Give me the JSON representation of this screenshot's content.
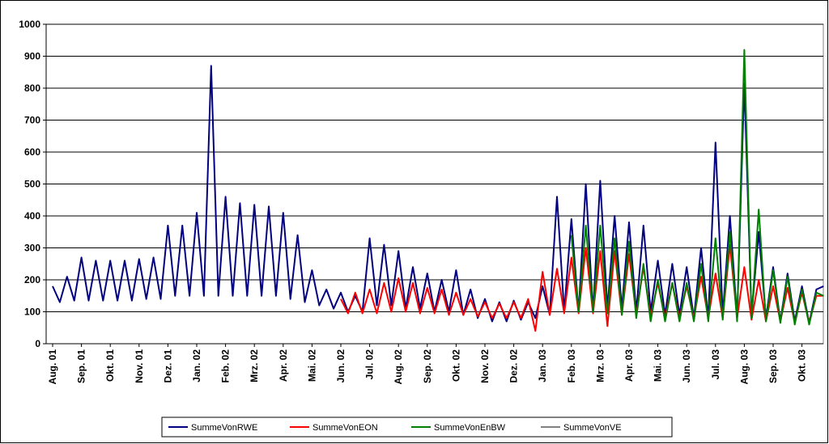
{
  "chart_data": {
    "type": "line",
    "categories": [
      "Aug. 01",
      null,
      null,
      null,
      "Sep. 01",
      null,
      null,
      null,
      "Okt. 01",
      null,
      null,
      null,
      "Nov. 01",
      null,
      null,
      null,
      "Dez. 01",
      null,
      null,
      null,
      "Jan. 02",
      null,
      null,
      null,
      "Feb. 02",
      null,
      null,
      null,
      "Mrz. 02",
      null,
      null,
      null,
      "Apr. 02",
      null,
      null,
      null,
      "Mai. 02",
      null,
      null,
      null,
      "Jun. 02",
      null,
      null,
      null,
      "Jul. 02",
      null,
      null,
      null,
      "Aug. 02",
      null,
      null,
      null,
      "Sep. 02",
      null,
      null,
      null,
      "Okt. 02",
      null,
      null,
      null,
      "Nov. 02",
      null,
      null,
      null,
      "Dez. 02",
      null,
      null,
      null,
      "Jan. 03",
      null,
      null,
      null,
      "Feb. 03",
      null,
      null,
      null,
      "Mrz. 03",
      null,
      null,
      null,
      "Apr. 03",
      null,
      null,
      null,
      "Mai. 03",
      null,
      null,
      null,
      "Jun. 03",
      null,
      null,
      null,
      "Jul. 03",
      null,
      null,
      null,
      "Aug. 03",
      null,
      null,
      null,
      "Sep. 03",
      null,
      null,
      null,
      "Okt. 03",
      null,
      null,
      null
    ],
    "series": [
      {
        "name": "SummeVonRWE",
        "color": "#000080",
        "values": [
          180,
          130,
          210,
          135,
          270,
          135,
          260,
          135,
          260,
          135,
          260,
          135,
          265,
          140,
          270,
          140,
          370,
          150,
          370,
          150,
          410,
          150,
          870,
          150,
          460,
          150,
          440,
          150,
          435,
          150,
          430,
          150,
          410,
          140,
          340,
          130,
          230,
          120,
          170,
          110,
          160,
          100,
          150,
          100,
          330,
          120,
          310,
          120,
          290,
          110,
          240,
          110,
          220,
          100,
          200,
          100,
          230,
          90,
          170,
          80,
          140,
          70,
          130,
          70,
          135,
          75,
          130,
          80,
          180,
          90,
          460,
          100,
          390,
          100,
          500,
          100,
          510,
          110,
          400,
          110,
          380,
          100,
          370,
          100,
          260,
          90,
          250,
          90,
          240,
          80,
          300,
          80,
          630,
          90,
          400,
          80,
          815,
          90,
          350,
          80,
          240,
          70,
          220,
          70,
          180,
          65,
          170,
          180
        ]
      },
      {
        "name": "SummeVonEON",
        "color": "#ff0000",
        "values": [
          null,
          null,
          null,
          null,
          null,
          null,
          null,
          null,
          null,
          null,
          null,
          null,
          null,
          null,
          null,
          null,
          null,
          null,
          null,
          null,
          null,
          null,
          null,
          null,
          null,
          null,
          null,
          null,
          null,
          null,
          null,
          null,
          null,
          null,
          null,
          null,
          null,
          null,
          null,
          null,
          140,
          95,
          160,
          95,
          170,
          95,
          190,
          100,
          205,
          100,
          190,
          95,
          175,
          95,
          170,
          90,
          160,
          90,
          140,
          85,
          130,
          80,
          125,
          80,
          130,
          80,
          140,
          40,
          225,
          90,
          235,
          95,
          270,
          95,
          300,
          95,
          290,
          55,
          290,
          90,
          280,
          90,
          240,
          85,
          190,
          80,
          190,
          80,
          180,
          80,
          210,
          80,
          220,
          80,
          310,
          80,
          240,
          75,
          200,
          70,
          180,
          70,
          175,
          65,
          160,
          65,
          150,
          150
        ]
      },
      {
        "name": "SummeVonEnBW",
        "color": "#008000",
        "values": [
          null,
          null,
          null,
          null,
          null,
          null,
          null,
          null,
          null,
          null,
          null,
          null,
          null,
          null,
          null,
          null,
          null,
          null,
          null,
          null,
          null,
          null,
          null,
          null,
          null,
          null,
          null,
          null,
          null,
          null,
          null,
          null,
          null,
          null,
          null,
          null,
          null,
          null,
          null,
          null,
          null,
          null,
          null,
          null,
          null,
          null,
          null,
          null,
          null,
          null,
          null,
          null,
          null,
          null,
          null,
          null,
          null,
          null,
          null,
          null,
          null,
          null,
          null,
          null,
          null,
          null,
          null,
          null,
          null,
          null,
          null,
          null,
          340,
          100,
          370,
          100,
          370,
          95,
          330,
          90,
          320,
          80,
          250,
          70,
          200,
          70,
          190,
          70,
          190,
          70,
          250,
          70,
          330,
          75,
          350,
          70,
          920,
          80,
          420,
          70,
          230,
          65,
          210,
          60,
          170,
          60,
          160,
          150
        ]
      },
      {
        "name": "SummeVonVE",
        "color": "#808080",
        "values": [
          null,
          null,
          null,
          null,
          null,
          null,
          null,
          null,
          null,
          null,
          null,
          null,
          null,
          null,
          null,
          null,
          null,
          null,
          null,
          null,
          null,
          null,
          null,
          null,
          null,
          null,
          null,
          null,
          null,
          null,
          null,
          null,
          null,
          null,
          null,
          null,
          null,
          null,
          null,
          null,
          null,
          null,
          null,
          null,
          null,
          null,
          null,
          null,
          null,
          null,
          null,
          null,
          null,
          null,
          null,
          null,
          null,
          null,
          null,
          null,
          null,
          null,
          null,
          null,
          null,
          null,
          null,
          null,
          null,
          null,
          null,
          null,
          null,
          null,
          null,
          null,
          null,
          null,
          null,
          null,
          null,
          null,
          null,
          null,
          null,
          null,
          null,
          null,
          null,
          null,
          null,
          null,
          null,
          null,
          null,
          null,
          null,
          null,
          null,
          null,
          null,
          null,
          null,
          null,
          null,
          null,
          null,
          null
        ]
      }
    ],
    "ylim": [
      0,
      1000
    ],
    "yticks": [
      0,
      100,
      200,
      300,
      400,
      500,
      600,
      700,
      800,
      900,
      1000
    ],
    "grid": true
  }
}
